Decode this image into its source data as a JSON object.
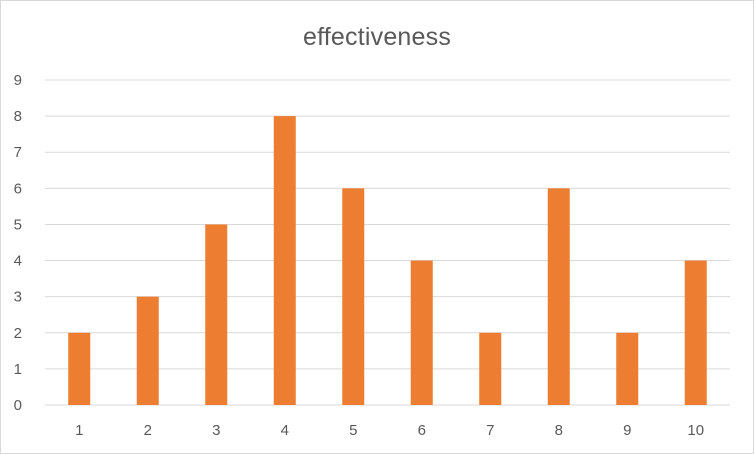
{
  "chart_data": {
    "type": "bar",
    "title": "effectiveness",
    "xlabel": "",
    "ylabel": "",
    "categories": [
      "1",
      "2",
      "3",
      "4",
      "5",
      "6",
      "7",
      "8",
      "9",
      "10"
    ],
    "values": [
      2,
      3,
      5,
      8,
      6,
      4,
      2,
      6,
      2,
      4
    ],
    "ylim": [
      0,
      9
    ],
    "yticks": [
      0,
      1,
      2,
      3,
      4,
      5,
      6,
      7,
      8,
      9
    ],
    "grid": "horizontal",
    "legend": "none",
    "colors": {
      "bar": "#ED7D31",
      "grid": "#d9d9d9",
      "text": "#595959"
    }
  }
}
